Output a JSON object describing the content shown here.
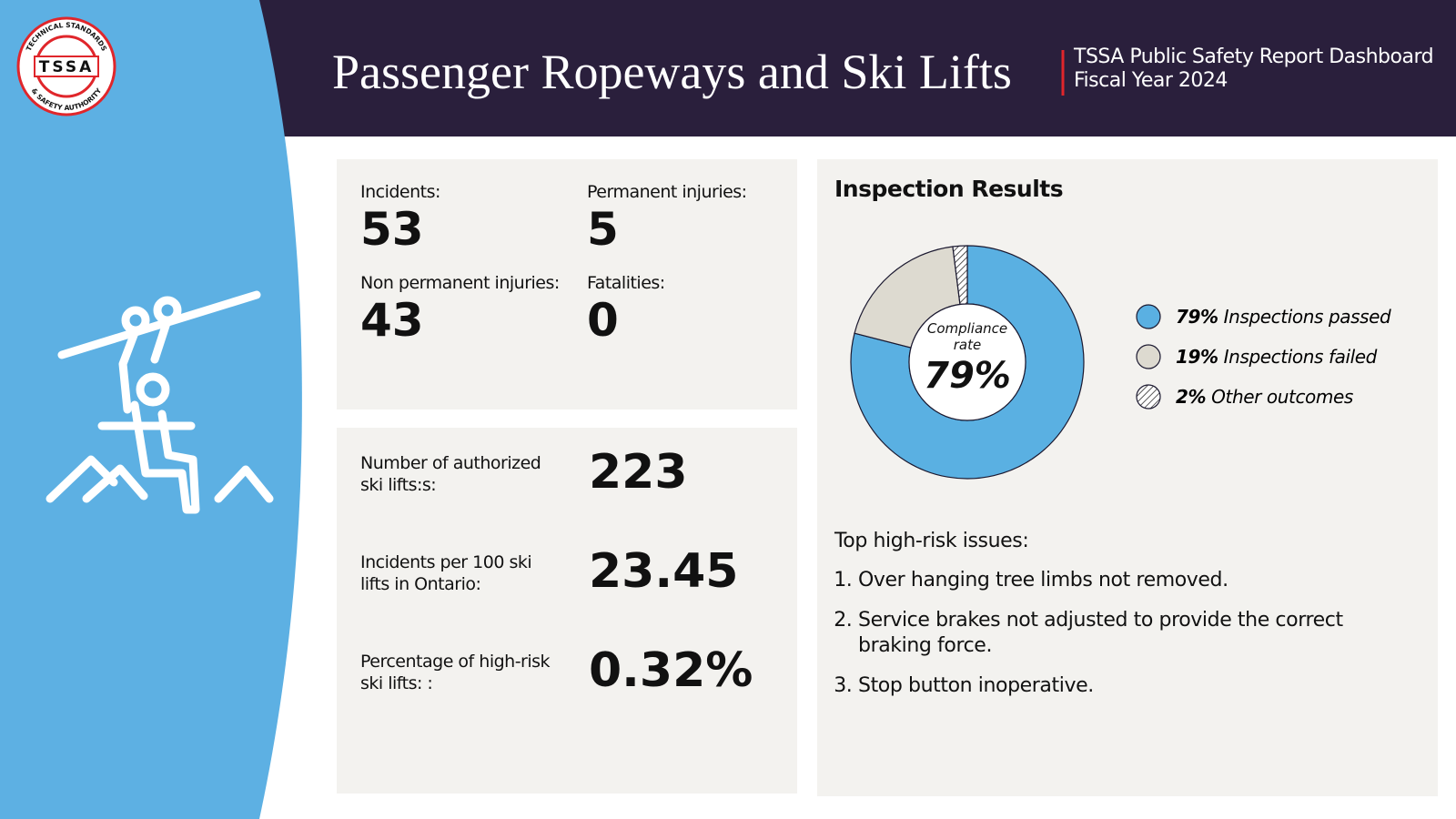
{
  "header": {
    "title": "Passenger Ropeways and Ski Lifts",
    "subtitle_lines": [
      "TSSA Public Safety Report Dashboard",
      "Fiscal Year 2024"
    ],
    "logo_text": "TSSA",
    "logo_ring_top": "TECHNICAL STANDARDS",
    "logo_ring_bottom": "& SAFETY AUTHORITY"
  },
  "stats": [
    {
      "label": "Incidents:",
      "value": "53"
    },
    {
      "label": "Permanent injuries:",
      "value": "5"
    },
    {
      "label": "Non permanent injuries:",
      "value": "43"
    },
    {
      "label": "Fatalities:",
      "value": "0"
    }
  ],
  "metrics": [
    {
      "label": "Number of authorized ski lifts:s:",
      "value": "223"
    },
    {
      "label": "Incidents per 100 ski lifts in Ontario:",
      "value": "23.45"
    },
    {
      "label": "Percentage of high-risk ski lifts: :",
      "value": "0.32%"
    }
  ],
  "chart_data": {
    "type": "pie",
    "title": "Inspection Results",
    "center_label": "Compliance rate",
    "categories": [
      "Inspections passed",
      "Inspections failed",
      "Other outcomes"
    ],
    "values": [
      79,
      19,
      2
    ],
    "value_labels": [
      "79%",
      "19%",
      "2%"
    ],
    "colors": [
      "#5ab0e2",
      "#dddad0",
      "#ffffff"
    ],
    "patterns": [
      null,
      null,
      "hatch"
    ]
  },
  "issues": {
    "title": "Top high-risk issues:",
    "items": [
      "Over hanging tree limbs not removed.",
      "Service brakes not adjusted to provide the correct braking force.",
      "Stop button inoperative."
    ]
  }
}
